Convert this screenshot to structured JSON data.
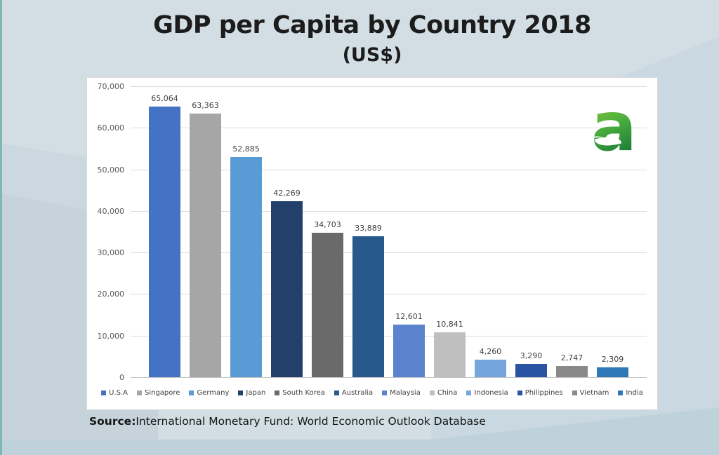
{
  "title": "GDP per Capita by Country 2018",
  "subtitle": "(US$)",
  "source": {
    "label": "Source:",
    "text": "International Monetary Fund: World Economic Outlook Database"
  },
  "logo": {
    "name": "aseanup-green-a-logo",
    "letter": "a",
    "gradient_top": "#9ecb3b",
    "gradient_bottom": "#0c6b33"
  },
  "chart_data": {
    "type": "bar",
    "title": "GDP per Capita by Country 2018",
    "subtitle": "(US$)",
    "xlabel": "",
    "ylabel": "",
    "ylim": [
      0,
      70000
    ],
    "grid": true,
    "legend_position": "bottom",
    "y_ticks": [
      "70,000",
      "60,000",
      "50,000",
      "40,000",
      "30,000",
      "20,000",
      "10,000",
      "0"
    ],
    "categories": [
      "U.S.A",
      "Singapore",
      "Germany",
      "Japan",
      "South Korea",
      "Australia",
      "Malaysia",
      "China",
      "Indonesia",
      "Philippines",
      "Vietnam",
      "India"
    ],
    "values": [
      65064,
      63363,
      52885,
      42269,
      34703,
      33889,
      12601,
      10841,
      4260,
      3290,
      2747,
      2309
    ],
    "value_labels": [
      "65,064",
      "63,363",
      "52,885",
      "42,269",
      "34,703",
      "33,889",
      "12,601",
      "10,841",
      "4,260",
      "3,290",
      "2,747",
      "2,309"
    ],
    "bar_colors": [
      "#4472c4",
      "#a6a6a6",
      "#5b9bd5",
      "#23406b",
      "#6a6a6a",
      "#27598c",
      "#5c83ce",
      "#bfbfbf",
      "#74a5dc",
      "#2a53a4",
      "#898989",
      "#2e78b8"
    ]
  }
}
